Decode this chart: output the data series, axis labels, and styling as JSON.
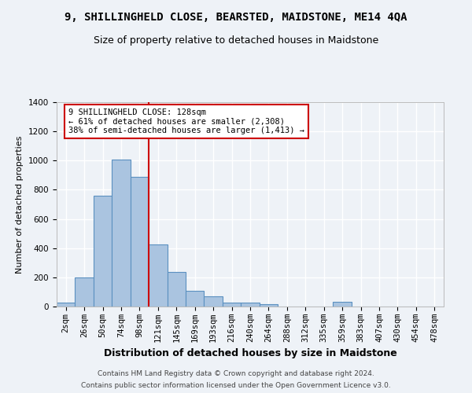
{
  "title": "9, SHILLINGHELD CLOSE, BEARSTED, MAIDSTONE, ME14 4QA",
  "subtitle": "Size of property relative to detached houses in Maidstone",
  "xlabel": "Distribution of detached houses by size in Maidstone",
  "ylabel": "Number of detached properties",
  "footer_line1": "Contains HM Land Registry data © Crown copyright and database right 2024.",
  "footer_line2": "Contains public sector information licensed under the Open Government Licence v3.0.",
  "categories": [
    "2sqm",
    "26sqm",
    "50sqm",
    "74sqm",
    "98sqm",
    "121sqm",
    "145sqm",
    "169sqm",
    "193sqm",
    "216sqm",
    "240sqm",
    "264sqm",
    "288sqm",
    "312sqm",
    "335sqm",
    "359sqm",
    "383sqm",
    "407sqm",
    "430sqm",
    "454sqm",
    "478sqm"
  ],
  "bar_heights": [
    25,
    200,
    760,
    1005,
    890,
    425,
    237,
    110,
    70,
    27,
    27,
    18,
    0,
    0,
    0,
    35,
    0,
    0,
    0,
    0,
    0
  ],
  "bar_color": "#aac4e0",
  "bar_edge_color": "#5b90c0",
  "vline_color": "#cc0000",
  "annotation_text": "9 SHILLINGHELD CLOSE: 128sqm\n← 61% of detached houses are smaller (2,308)\n38% of semi-detached houses are larger (1,413) →",
  "annotation_box_color": "#ffffff",
  "annotation_box_edge_color": "#cc0000",
  "ylim": [
    0,
    1400
  ],
  "yticks": [
    0,
    200,
    400,
    600,
    800,
    1000,
    1200,
    1400
  ],
  "background_color": "#eef2f7",
  "grid_color": "#ffffff",
  "title_fontsize": 10,
  "subtitle_fontsize": 9,
  "xlabel_fontsize": 9,
  "ylabel_fontsize": 8,
  "tick_fontsize": 7.5,
  "footer_fontsize": 6.5,
  "annot_fontsize": 7.5
}
